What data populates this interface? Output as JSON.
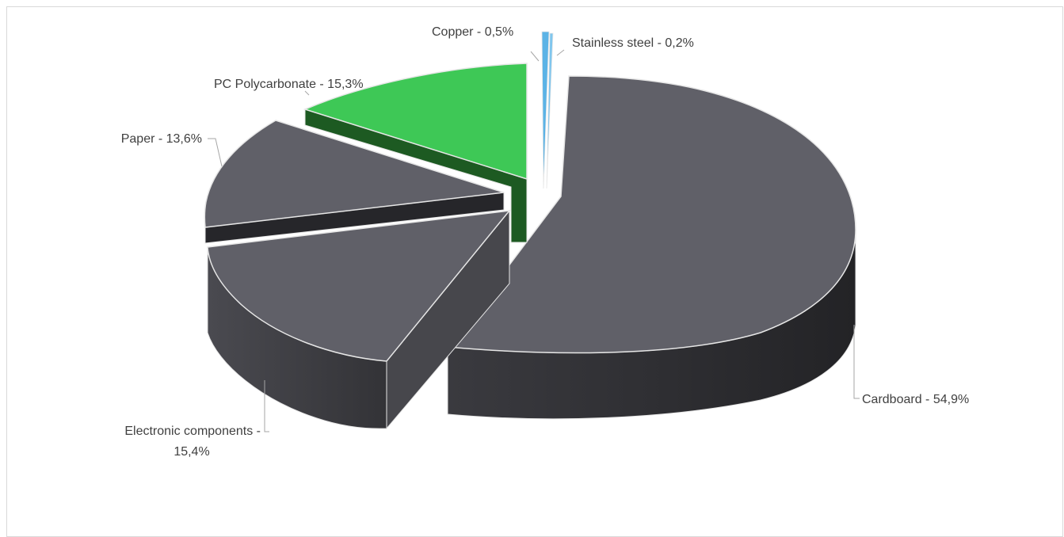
{
  "chart_data": {
    "type": "pie",
    "variant": "3d-exploded",
    "title": "",
    "slices": [
      {
        "name": "Cardboard",
        "value": 54.9,
        "label": "Cardboard - 54,9%",
        "color": "#606068"
      },
      {
        "name": "Electronic components",
        "value": 15.4,
        "label_lines": [
          "Electronic components -",
          "15,4%"
        ],
        "color": "#606068"
      },
      {
        "name": "Paper",
        "value": 13.6,
        "label": "Paper - 13,6%",
        "color": "#606068"
      },
      {
        "name": "PC Polycarbonate",
        "value": 15.3,
        "label": "PC Polycarbonate - 15,3%",
        "color": "#3ec856"
      },
      {
        "name": "Copper",
        "value": 0.5,
        "label": "Copper - 0,5%",
        "color": "#5bb3e6"
      },
      {
        "name": "Stainless steel",
        "value": 0.2,
        "label": "Stainless steel - 0,2%",
        "color": "#7fc6ee"
      }
    ],
    "legend": "none"
  }
}
